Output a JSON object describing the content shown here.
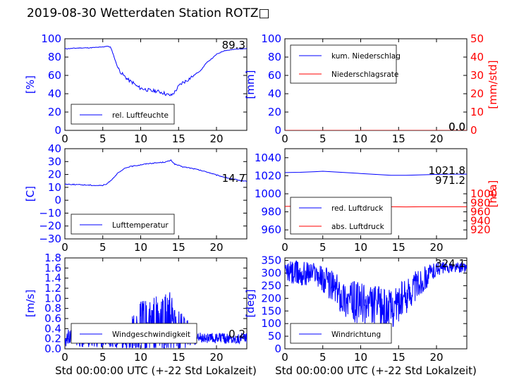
{
  "figure": {
    "title": "2019-08-30 Wetterdaten Station ROTZ□"
  },
  "colors": {
    "primary": "#0000ff",
    "secondary": "#ff0000",
    "axis": "#000000",
    "background": "#ffffff"
  },
  "chart_data": [
    {
      "id": "humidity",
      "type": "line",
      "xlim": [
        0,
        24
      ],
      "ylim": [
        0,
        100
      ],
      "xticks": [
        "0",
        "5",
        "10",
        "15",
        "20"
      ],
      "yticks": [
        "0",
        "20",
        "40",
        "60",
        "80",
        "100"
      ],
      "ylabel": "[%]",
      "xlabel": "",
      "latest_label": "89.3",
      "legend_loc": "lower-left",
      "series": [
        {
          "name": "rel. Luftfeuchte",
          "x": [
            0,
            1,
            2,
            3,
            4,
            5,
            5.5,
            6,
            6.3,
            6.7,
            7,
            7.5,
            8,
            8.5,
            9,
            9.5,
            10,
            10.5,
            11,
            11.5,
            12,
            12.5,
            13,
            13.5,
            14,
            14.5,
            15,
            15.5,
            16,
            16.5,
            17,
            17.5,
            18,
            18.5,
            19,
            19.5,
            20,
            20.5,
            21,
            22,
            23,
            24
          ],
          "y": [
            89,
            89.5,
            90,
            90,
            90.5,
            91,
            92,
            91,
            85,
            75,
            68,
            62,
            58,
            54,
            52,
            48,
            46,
            45,
            44,
            43,
            43,
            42,
            41,
            39,
            38,
            42,
            48,
            52,
            54,
            57,
            60,
            63,
            66,
            72,
            76,
            79,
            83,
            85,
            87,
            88,
            89,
            89.3
          ]
        }
      ]
    },
    {
      "id": "precipitation",
      "type": "line",
      "xlim": [
        0,
        24
      ],
      "ylim": [
        0,
        100
      ],
      "y2lim": [
        0,
        50
      ],
      "xticks": [
        "0",
        "5",
        "10",
        "15",
        "20"
      ],
      "yticks": [
        "0",
        "20",
        "40",
        "60",
        "80",
        "100"
      ],
      "y2ticks": [
        "0",
        "10",
        "20",
        "30",
        "40",
        "50"
      ],
      "ylabel": "[mm]",
      "y2label": "[mm/std]",
      "xlabel": "",
      "latest_label": "0.0",
      "latest_label_2": "0.0",
      "legend_loc": "upper-left",
      "series": [
        {
          "name": "kum. Niederschlag",
          "axis": "left",
          "x": [
            0,
            24
          ],
          "y": [
            0,
            0
          ]
        },
        {
          "name": "Niederschlagsrate",
          "axis": "right",
          "x": [
            0,
            24
          ],
          "y": [
            0,
            0
          ]
        }
      ]
    },
    {
      "id": "temperature",
      "type": "line",
      "xlim": [
        0,
        24
      ],
      "ylim": [
        -30,
        40
      ],
      "xticks": [
        "0",
        "5",
        "10",
        "15",
        "20"
      ],
      "yticks": [
        "−30",
        "−20",
        "−10",
        "0",
        "10",
        "20",
        "30",
        "40"
      ],
      "ylabel": "[C]",
      "xlabel": "",
      "latest_label": "14.7",
      "legend_loc": "lower-left",
      "series": [
        {
          "name": "Lufttemperatur",
          "x": [
            0,
            1,
            2,
            3,
            4,
            5,
            5.5,
            6,
            6.5,
            7,
            7.5,
            8,
            8.5,
            9,
            10,
            11,
            12,
            13,
            13.5,
            14,
            14.5,
            15,
            15.5,
            16,
            17,
            18,
            19,
            20,
            21,
            22,
            23,
            24
          ],
          "y": [
            12.5,
            12.3,
            12,
            11.8,
            11.5,
            11.5,
            12.5,
            15,
            18,
            21,
            23,
            25,
            26,
            26.5,
            27.5,
            28.5,
            29,
            29.5,
            30,
            31,
            28,
            27,
            26,
            25.5,
            24.5,
            23,
            21.5,
            19.5,
            18,
            16.5,
            15.5,
            14.7
          ]
        }
      ]
    },
    {
      "id": "pressure",
      "type": "line",
      "xlim": [
        0,
        24
      ],
      "ylim": [
        950,
        1050
      ],
      "y2lim": [
        900,
        1100
      ],
      "xticks": [
        "0",
        "5",
        "10",
        "15",
        "20"
      ],
      "yticks": [
        "960",
        "980",
        "1000",
        "1020",
        "1040"
      ],
      "y2ticks": [
        "920",
        "940",
        "960",
        "980",
        "1000"
      ],
      "ylabel": "",
      "y2label": "[hPa]",
      "xlabel": "",
      "latest_label": "1021.8",
      "latest_label_2": "971.2",
      "legend_loc": "lower-left",
      "series": [
        {
          "name": "red. Luftdruck",
          "axis": "left",
          "x": [
            0,
            2,
            4,
            5,
            6,
            8,
            10,
            12,
            14,
            16,
            18,
            20,
            22,
            24
          ],
          "y": [
            1023.5,
            1023.8,
            1024.5,
            1025,
            1024.5,
            1023.5,
            1022.5,
            1021.5,
            1020.5,
            1020.5,
            1021,
            1021.5,
            1021.8,
            1021.8
          ]
        },
        {
          "name": "abs. Luftdruck",
          "axis": "right",
          "x": [
            0,
            2,
            4,
            5,
            6,
            8,
            10,
            12,
            14,
            16,
            18,
            20,
            22,
            24
          ],
          "y": [
            972,
            972.5,
            973.5,
            974,
            973.8,
            973.2,
            972.5,
            971.8,
            971.2,
            971,
            971.2,
            971.3,
            971.2,
            971.2
          ]
        }
      ]
    },
    {
      "id": "windspeed",
      "type": "line",
      "xlim": [
        0,
        24
      ],
      "ylim": [
        0,
        1.8
      ],
      "xticks": [
        "0",
        "5",
        "10",
        "15",
        "20"
      ],
      "yticks": [
        "0.0",
        "0.2",
        "0.4",
        "0.6",
        "0.8",
        "1.0",
        "1.2",
        "1.4",
        "1.6",
        "1.8"
      ],
      "ylabel": "[m/s]",
      "xlabel": "Std 00:00:00 UTC (+-22 Std Lokalzeit)",
      "latest_label": "0.2",
      "legend_loc": "lower-left",
      "series": [
        {
          "name": "Windgeschwindigkeit",
          "envelope": {
            "x": [
              0,
              2,
              4,
              6,
              8,
              9,
              10,
              11,
              12,
              13,
              13.5,
              14,
              14.5,
              15,
              16,
              17,
              18,
              20,
              22,
              24
            ],
            "base": [
              0.2,
              0.18,
              0.15,
              0.15,
              0.15,
              0.25,
              0.35,
              0.35,
              0.35,
              0.35,
              0.35,
              0.3,
              0.3,
              0.3,
              0.25,
              0.2,
              0.2,
              0.2,
              0.2,
              0.2
            ],
            "amp": [
              0.25,
              0.25,
              0.2,
              0.2,
              0.3,
              0.6,
              0.8,
              0.8,
              0.9,
              0.9,
              1.3,
              1.0,
              0.7,
              0.6,
              0.5,
              0.2,
              0.15,
              0.15,
              0.15,
              0.15
            ]
          }
        }
      ]
    },
    {
      "id": "winddirection",
      "type": "line",
      "xlim": [
        0,
        24
      ],
      "ylim": [
        0,
        360
      ],
      "xticks": [
        "0",
        "5",
        "10",
        "15",
        "20"
      ],
      "yticks": [
        "0",
        "50",
        "100",
        "150",
        "200",
        "250",
        "300",
        "350"
      ],
      "ylabel": "[deg]",
      "xlabel": "Std 00:00:00 UTC (+-22 Std Lokalzeit)",
      "latest_label": "324.1",
      "legend_loc": "lower-left",
      "series": [
        {
          "name": "Windrichtung",
          "envelope": {
            "x": [
              0,
              2,
              4,
              5,
              6,
              7,
              8,
              10,
              12,
              13,
              14,
              15,
              16,
              17,
              18,
              19,
              20,
              22,
              24
            ],
            "base": [
              300,
              290,
              300,
              270,
              250,
              220,
              190,
              170,
              160,
              150,
              150,
              175,
              200,
              240,
              260,
              290,
              315,
              320,
              320
            ],
            "amp": [
              60,
              80,
              60,
              80,
              90,
              100,
              110,
              120,
              120,
              120,
              110,
              110,
              100,
              90,
              80,
              60,
              40,
              30,
              30
            ]
          }
        }
      ]
    }
  ]
}
